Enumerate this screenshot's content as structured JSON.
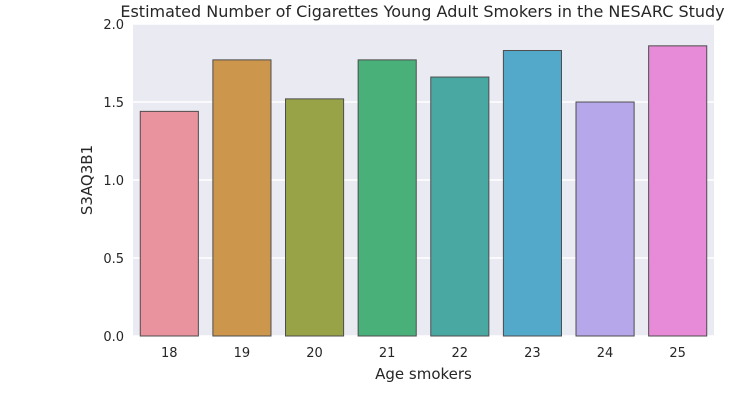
{
  "chart_data": {
    "type": "bar",
    "title": "Estimated Number of Cigarettes Young Adult Smokers in the NESARC Study",
    "xlabel": "Age smokers",
    "ylabel": "S3AQ3B1",
    "categories": [
      "18",
      "19",
      "20",
      "21",
      "22",
      "23",
      "24",
      "25"
    ],
    "values": [
      1.44,
      1.77,
      1.52,
      1.77,
      1.66,
      1.83,
      1.5,
      1.86
    ],
    "colors": [
      "#e8939e",
      "#cc974c",
      "#98a348",
      "#49b07a",
      "#49a8a2",
      "#52a9ca",
      "#b6a7ea",
      "#e78ad7"
    ],
    "ylim": [
      0,
      2.0
    ],
    "yticks": [
      "0.0",
      "0.5",
      "1.0",
      "1.5",
      "2.0"
    ],
    "grid": true,
    "legend": "none",
    "background": "#eaeaf2"
  }
}
